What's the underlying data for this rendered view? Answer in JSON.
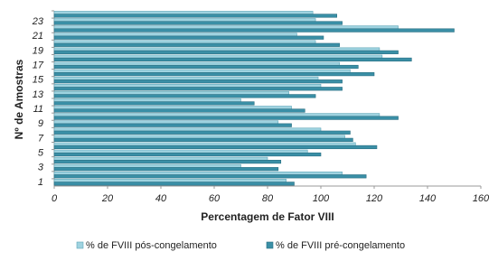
{
  "chart_data": {
    "type": "hbar",
    "x_label": "Percentagem de Fator VIII",
    "y_label": "Nº de Amostras",
    "categories": [
      "1",
      null,
      "3",
      null,
      "5",
      null,
      "7",
      null,
      "9",
      null,
      "11",
      null,
      "13",
      null,
      "15",
      null,
      "17",
      null,
      "19",
      null,
      "21",
      null,
      "23",
      null
    ],
    "series": [
      {
        "name": "% de FVIII pós-congelamento",
        "color": "#9fd3e0",
        "values": [
          87,
          108,
          70,
          80,
          95,
          113,
          109,
          100,
          84,
          122,
          89,
          70,
          88,
          100,
          99,
          111,
          107,
          123,
          122,
          98,
          91,
          129,
          98,
          97
        ]
      },
      {
        "name": "% de FVIII pré-congelamento",
        "color": "#3a8fa6",
        "values": [
          90,
          117,
          84,
          85,
          100,
          121,
          112,
          111,
          89,
          129,
          94,
          75,
          98,
          108,
          108,
          120,
          114,
          134,
          129,
          107,
          101,
          150,
          108,
          106
        ]
      }
    ],
    "xlim": [
      0,
      160
    ],
    "xticks": [
      0,
      20,
      40,
      60,
      80,
      100,
      120,
      140,
      160
    ],
    "legend": "bottom"
  }
}
